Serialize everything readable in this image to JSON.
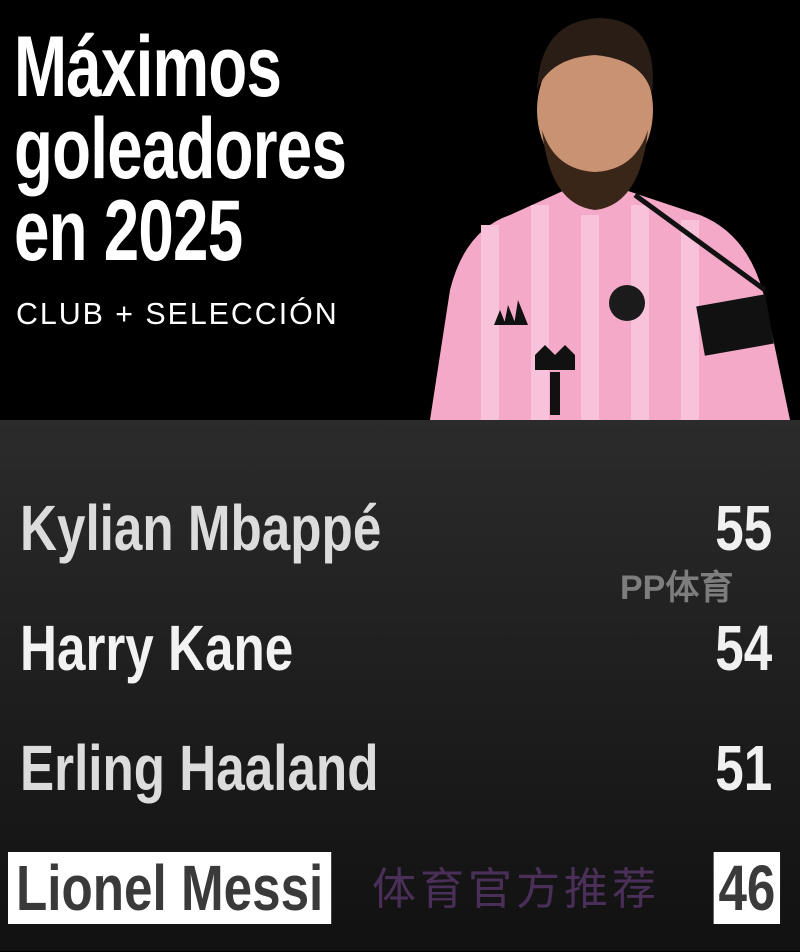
{
  "header": {
    "title_lines": [
      "Máximos",
      "goleadores",
      "en 2025"
    ],
    "subtitle": "CLUB + SELECCIÓN"
  },
  "colors": {
    "background_top": "#000000",
    "background_bottom": "#2b2b2b",
    "jersey_pink": "#f4a9c8",
    "highlight_box": "#ffffff"
  },
  "ranking": [
    {
      "name": "Kylian Mbappé",
      "goals": "55",
      "highlighted": false
    },
    {
      "name": "Harry Kane",
      "goals": "54",
      "highlighted": false
    },
    {
      "name": "Erling Haaland",
      "goals": "51",
      "highlighted": false
    },
    {
      "name": "Lionel Messi",
      "goals": "46",
      "highlighted": true
    }
  ],
  "watermark": {
    "text": "体育官方推荐",
    "logo": "PP体育"
  }
}
